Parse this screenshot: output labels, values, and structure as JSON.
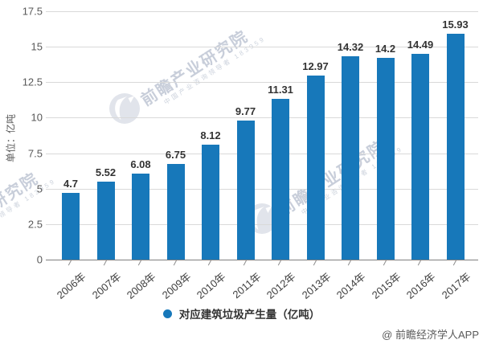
{
  "chart_data": {
    "type": "bar",
    "title": "",
    "categories": [
      "2006年",
      "2007年",
      "2008年",
      "2009年",
      "2010年",
      "2011年",
      "2012年",
      "2013年",
      "2014年",
      "2015年",
      "2016年",
      "2017年"
    ],
    "values": [
      4.7,
      5.52,
      6.08,
      6.75,
      8.12,
      9.77,
      11.31,
      12.97,
      14.32,
      14.2,
      14.49,
      15.93
    ],
    "value_labels": [
      "4.7",
      "5.52",
      "6.08",
      "6.75",
      "8.12",
      "9.77",
      "11.31",
      "12.97",
      "14.32",
      "14.2",
      "14.49",
      "15.93"
    ],
    "xlabel": "",
    "ylabel": "单位：亿吨",
    "ylim": [
      0,
      17.5
    ],
    "yticks": [
      0,
      2.5,
      5,
      7.5,
      10,
      12.5,
      15,
      17.5
    ],
    "ytick_labels": [
      "0",
      "2.5",
      "5",
      "7.5",
      "10",
      "12.5",
      "15",
      "17.5"
    ],
    "grid": "horizontal",
    "legend_position": "bottom",
    "legend_label": "对应建筑垃圾产生量（亿吨）"
  },
  "watermark": {
    "brand": "前瞻产业研究院",
    "subtext": "中国产业咨询领导者 183959"
  },
  "credit": "@ 前瞻经济学人APP",
  "colors": {
    "bar": "#1778ba",
    "grid": "#d9d9d9",
    "axis": "#7f7f7f",
    "watermark": "#a4aec1"
  }
}
